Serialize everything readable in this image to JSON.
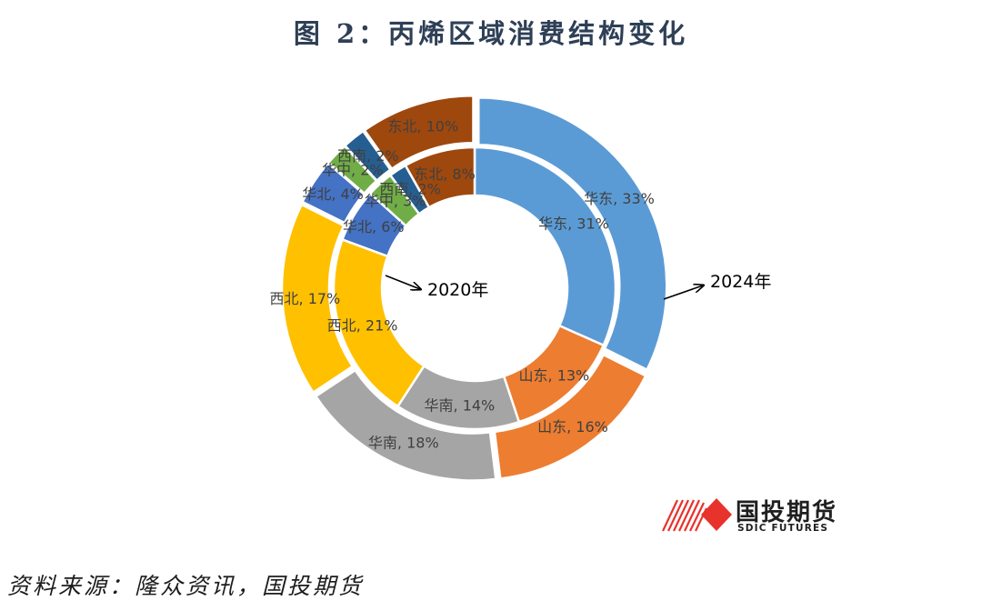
{
  "title": "图 2：丙烯区域消费结构变化",
  "source": "资料来源：隆众资讯，国投期货",
  "logo": {
    "name": "国投期货",
    "subtitle": "SDIC FUTURES"
  },
  "colors": {
    "华东": "#5b9bd5",
    "山东": "#ed7d31",
    "华南": "#a5a5a5",
    "西北": "#ffc000",
    "华北": "#4472c4",
    "华中": "#70ad47",
    "西南": "#255e91",
    "东北": "#9e480e",
    "brand_red": "#e8322c"
  },
  "chart_data": {
    "type": "pie",
    "subtype": "doughnut",
    "categories": [
      "华东",
      "山东",
      "华南",
      "西北",
      "华北",
      "华中",
      "西南",
      "东北"
    ],
    "series": [
      {
        "name": "2020年",
        "ring": "inner",
        "values": [
          31,
          13,
          14,
          21,
          6,
          3,
          2,
          8
        ]
      },
      {
        "name": "2024年",
        "ring": "outer",
        "values": [
          33,
          16,
          18,
          17,
          4,
          2,
          2,
          10
        ]
      }
    ],
    "annotations": [
      "2020年",
      "2024年"
    ]
  }
}
